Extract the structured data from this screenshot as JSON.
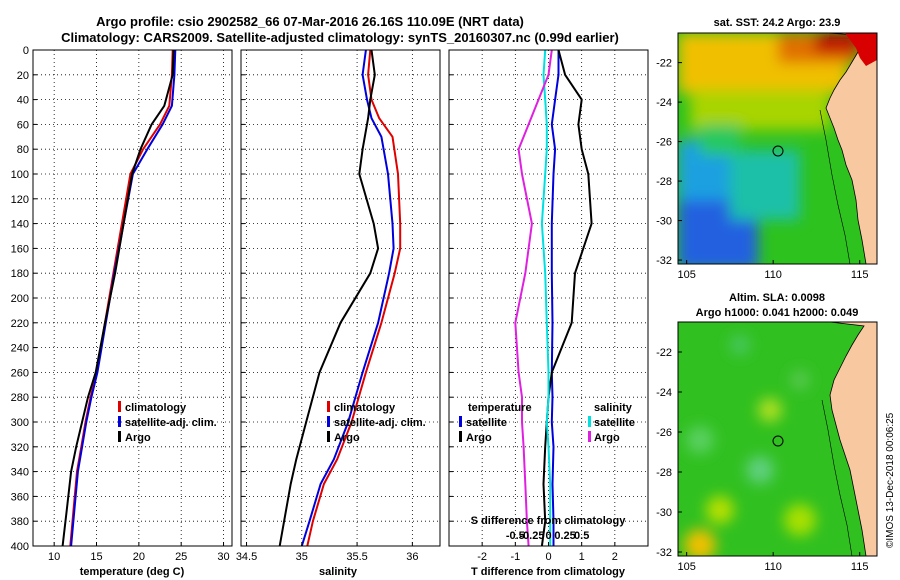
{
  "title": {
    "line1": "Argo profile: csio 2902582_66 07-Mar-2016 26.16S 110.09E (NRT data)",
    "line2": "Climatology: CARS2009. Satellite-adjusted climatology: synTS_20160307.nc (0.99d earlier)"
  },
  "colors": {
    "climatology": "#e00000",
    "satellite": "#0000dd",
    "argo": "#000000",
    "s_satellite": "#00e0e0",
    "s_argo": "#e020e0"
  },
  "chart_data": [
    {
      "type": "line",
      "id": "temperature",
      "xlabel": "temperature (deg C)",
      "ylabel": "",
      "xlim": [
        7.5,
        31
      ],
      "ylim": [
        0,
        400
      ],
      "x_ticks": [
        "10",
        "15",
        "20",
        "25",
        "30"
      ],
      "x_tick_values": [
        10,
        15,
        20,
        25,
        30
      ],
      "y_ticks": [
        "0",
        "20",
        "40",
        "60",
        "80",
        "100",
        "120",
        "140",
        "160",
        "180",
        "200",
        "220",
        "240",
        "260",
        "280",
        "300",
        "320",
        "340",
        "360",
        "380",
        "400"
      ],
      "legend": [
        "climatology",
        "satellite-adj. clim.",
        "Argo"
      ],
      "series": [
        {
          "name": "climatology",
          "color_key": "climatology",
          "x": [
            24.0,
            23.9,
            23.6,
            22.5,
            20.5,
            19.0,
            18.0,
            17.0,
            16.0,
            15.0,
            14.3,
            13.7,
            13.2,
            12.7,
            12.3,
            11.9
          ],
          "y": [
            0,
            20,
            45,
            60,
            80,
            100,
            140,
            180,
            220,
            260,
            280,
            300,
            320,
            340,
            370,
            400
          ]
        },
        {
          "name": "satellite-adj. clim.",
          "color_key": "satellite",
          "x": [
            24.3,
            24.2,
            23.9,
            22.8,
            21.0,
            19.3,
            18.2,
            17.1,
            16.1,
            15.1,
            14.4,
            13.8,
            13.3,
            12.8,
            12.4,
            12.0
          ],
          "y": [
            0,
            20,
            45,
            60,
            80,
            100,
            140,
            180,
            220,
            260,
            280,
            300,
            320,
            340,
            370,
            400
          ]
        },
        {
          "name": "Argo",
          "color_key": "argo",
          "x": [
            24.1,
            24.0,
            23.0,
            21.5,
            20.2,
            19.2,
            18.2,
            17.2,
            16.0,
            14.9,
            14.0,
            13.3,
            12.6,
            12.0,
            11.5,
            11.0
          ],
          "y": [
            0,
            20,
            45,
            60,
            80,
            100,
            140,
            180,
            220,
            260,
            280,
            300,
            320,
            340,
            370,
            400
          ]
        }
      ]
    },
    {
      "type": "line",
      "id": "salinity",
      "xlabel": "salinity",
      "xlim": [
        34.45,
        36.25
      ],
      "ylim": [
        0,
        400
      ],
      "x_ticks": [
        "34.5",
        "35",
        "35.5",
        "36"
      ],
      "x_tick_values": [
        34.5,
        35.0,
        35.5,
        36.0
      ],
      "legend": [
        "climatology",
        "satellite-adj. clim.",
        "Argo"
      ],
      "series": [
        {
          "name": "climatology",
          "color_key": "climatology",
          "x": [
            35.62,
            35.6,
            35.63,
            35.7,
            35.82,
            35.87,
            35.89,
            35.89,
            35.84,
            35.72,
            35.58,
            35.45,
            35.32,
            35.2,
            35.1,
            35.05
          ],
          "y": [
            0,
            20,
            40,
            55,
            70,
            100,
            140,
            160,
            180,
            220,
            260,
            300,
            330,
            350,
            380,
            400
          ]
        },
        {
          "name": "satellite-adj. clim.",
          "color_key": "satellite",
          "x": [
            35.58,
            35.55,
            35.59,
            35.63,
            35.72,
            35.78,
            35.82,
            35.83,
            35.79,
            35.69,
            35.55,
            35.42,
            35.29,
            35.17,
            35.07,
            35.0
          ],
          "y": [
            0,
            20,
            40,
            55,
            70,
            100,
            140,
            160,
            180,
            220,
            260,
            300,
            330,
            350,
            380,
            400
          ]
        },
        {
          "name": "Argo",
          "color_key": "argo",
          "x": [
            35.63,
            35.66,
            35.62,
            35.6,
            35.55,
            35.52,
            35.65,
            35.69,
            35.62,
            35.35,
            35.16,
            35.04,
            34.95,
            34.9,
            34.84,
            34.8
          ],
          "y": [
            0,
            20,
            40,
            55,
            80,
            100,
            140,
            160,
            180,
            220,
            260,
            300,
            330,
            350,
            380,
            400
          ]
        }
      ]
    },
    {
      "type": "line",
      "id": "difference",
      "xlabel": "T difference from climatology",
      "title_inner": "S difference from climatology",
      "xlim": [
        -3,
        3
      ],
      "ylim": [
        0,
        400
      ],
      "x_ticks": [
        "-2",
        "-1",
        "0",
        "1",
        "2"
      ],
      "x_tick_values": [
        -2,
        -1,
        0,
        1,
        2
      ],
      "s_ticks": [
        "-0.5",
        "-0.25",
        "0",
        "0.25",
        "0.5"
      ],
      "s_tick_values": [
        -0.5,
        -0.25,
        0,
        0.25,
        0.5
      ],
      "legend_temperature": {
        "header": "temperature",
        "items": [
          "satellite",
          "Argo"
        ]
      },
      "legend_salinity": {
        "header": "salinity",
        "items": [
          "satellite",
          "Argo"
        ]
      },
      "series": [
        {
          "name": "T satellite",
          "color_key": "satellite",
          "x": [
            0.3,
            0.3,
            0.2,
            0.1,
            0.2,
            0.15,
            0.1,
            0.1,
            0.12,
            0.1,
            0.12,
            0.1,
            0.15,
            0.12,
            0.15,
            0.15
          ],
          "y": [
            0,
            20,
            40,
            60,
            80,
            100,
            140,
            180,
            220,
            260,
            280,
            300,
            320,
            350,
            380,
            400
          ]
        },
        {
          "name": "T Argo",
          "color_key": "argo",
          "x": [
            0.3,
            0.5,
            1.0,
            0.9,
            1.0,
            1.2,
            1.3,
            0.8,
            0.7,
            0.1,
            0.0,
            -0.05,
            -0.1,
            -0.15,
            -0.1,
            -0.2
          ],
          "y": [
            0,
            20,
            40,
            60,
            80,
            100,
            140,
            180,
            220,
            260,
            280,
            300,
            320,
            350,
            380,
            400
          ]
        },
        {
          "name": "S satellite",
          "color_key": "s_satellite",
          "x": [
            -0.1,
            -0.15,
            -0.1,
            -0.05,
            -0.05,
            -0.1,
            -0.2,
            -0.1,
            -0.05,
            0.0,
            0.0,
            -0.05,
            0.0,
            0.05,
            0.05,
            0.05
          ],
          "y": [
            0,
            20,
            40,
            60,
            80,
            100,
            140,
            180,
            220,
            260,
            280,
            300,
            320,
            350,
            380,
            400
          ]
        },
        {
          "name": "S Argo",
          "color_key": "s_argo",
          "x": [
            0.1,
            0.0,
            -0.3,
            -0.6,
            -0.9,
            -0.8,
            -0.5,
            -0.7,
            -1.0,
            -0.9,
            -0.8,
            -0.8,
            -0.75,
            -0.7,
            -0.65,
            -0.6
          ],
          "y": [
            0,
            20,
            40,
            60,
            80,
            100,
            140,
            180,
            220,
            260,
            280,
            300,
            320,
            350,
            380,
            400
          ]
        }
      ]
    },
    {
      "type": "heatmap",
      "id": "sst-map",
      "title": "sat. SST: 24.2 Argo: 23.9",
      "xlim": [
        104.5,
        116
      ],
      "ylim": [
        -32.2,
        -20.5
      ],
      "x_ticks": [
        "105",
        "110",
        "115"
      ],
      "x_tick_values": [
        105,
        110,
        115
      ],
      "y_ticks": [
        "-22",
        "-24",
        "-26",
        "-28",
        "-30",
        "-32"
      ],
      "y_tick_values": [
        -22,
        -24,
        -26,
        -28,
        -30,
        -32
      ],
      "marker": {
        "lon": 110.09,
        "lat": -26.16
      }
    },
    {
      "type": "heatmap",
      "id": "sla-map",
      "title_line1": "Altim. SLA: 0.0098",
      "title_line2": "Argo h1000: 0.041 h2000: 0.049",
      "xlim": [
        104.5,
        116
      ],
      "ylim": [
        -32.2,
        -20.5
      ],
      "x_ticks": [
        "105",
        "110",
        "115"
      ],
      "x_tick_values": [
        105,
        110,
        115
      ],
      "y_ticks": [
        "-22",
        "-24",
        "-26",
        "-28",
        "-30",
        "-32"
      ],
      "y_tick_values": [
        -22,
        -24,
        -26,
        -28,
        -30,
        -32
      ],
      "marker": {
        "lon": 110.09,
        "lat": -26.16
      }
    }
  ],
  "labels": {
    "climatology": "climatology",
    "satellite_adj": "satellite-adj. clim.",
    "argo": "Argo",
    "temperature": "temperature",
    "salinity": "salinity",
    "satellite": "satellite"
  },
  "footer": {
    "stamp": "©IMOS 13-Dec-2018 00:06:25"
  }
}
